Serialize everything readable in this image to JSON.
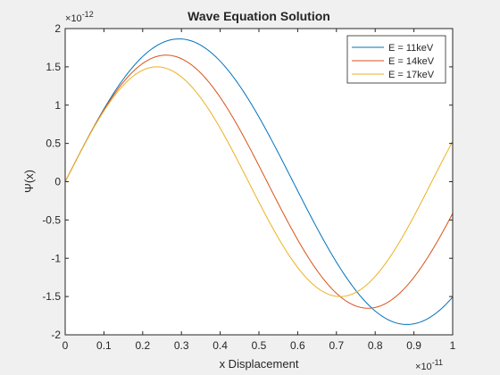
{
  "chart_data": {
    "type": "line",
    "title": "Wave Equation Solution",
    "xlabel": "x Displacement",
    "ylabel": "Ψ(x)",
    "x_exponent_label": "10",
    "x_exponent_power": "-11",
    "y_exponent_label": "10",
    "y_exponent_power": "-12",
    "x_scale": 1e-11,
    "y_scale": 1e-12,
    "xlim": [
      0,
      1
    ],
    "ylim": [
      -2,
      2
    ],
    "xticks": [
      "0",
      "0.1",
      "0.2",
      "0.3",
      "0.4",
      "0.5",
      "0.6",
      "0.7",
      "0.8",
      "0.9",
      "1"
    ],
    "yticks": [
      "2",
      "1.5",
      "1",
      "0.5",
      "0",
      "-0.5",
      "-1",
      "-1.5",
      "-2"
    ],
    "grid": false,
    "box": true,
    "legend_position": "top-right",
    "series": [
      {
        "name": "E = 11keV",
        "color": "#0072BD",
        "amplitude": 1.865,
        "wavelength": 1.176
      },
      {
        "name": "E = 14keV",
        "color": "#D95319",
        "amplitude": 1.653,
        "wavelength": 1.042
      },
      {
        "name": "E = 17keV",
        "color": "#EDB120",
        "amplitude": 1.5,
        "wavelength": 0.946
      }
    ]
  }
}
